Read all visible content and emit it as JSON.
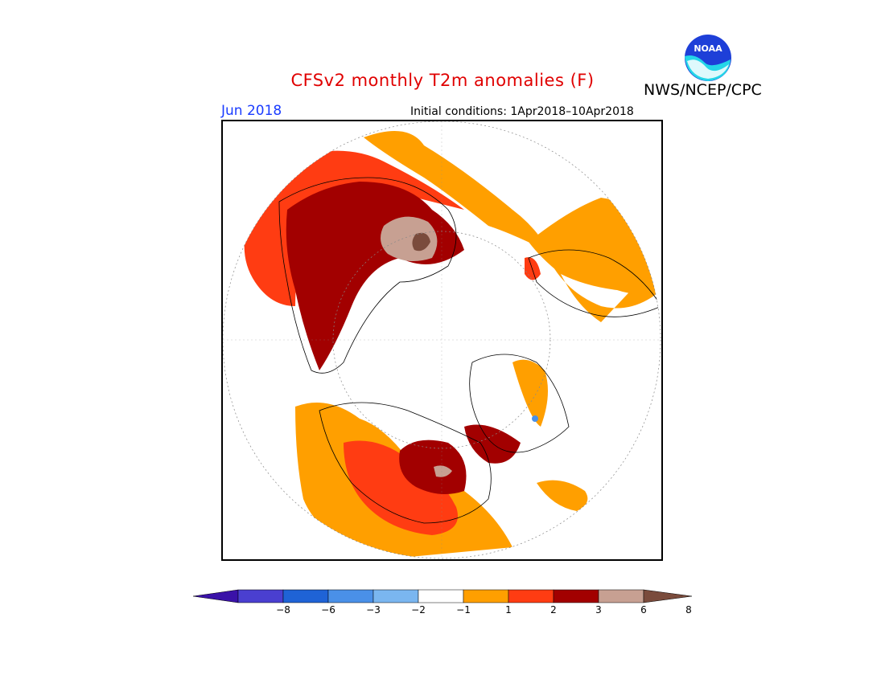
{
  "title": "CFSv2 monthly T2m anomalies (F)",
  "agency": "NWS/NCEP/CPC",
  "month": "Jun 2018",
  "initial_conditions": "Initial conditions: 1Apr2018–10Apr2018",
  "logo": {
    "text": "NOAA",
    "icon": "noaa-logo"
  },
  "colorbar": {
    "ticks": [
      "−8",
      "−6",
      "−3",
      "−2",
      "−1",
      "1",
      "2",
      "3",
      "6",
      "8"
    ],
    "colors": [
      "#3a12a8",
      "#4a3fd0",
      "#1f63d6",
      "#4a90e8",
      "#7ab6f0",
      "#ffffff",
      "#ff9f00",
      "#ff3c12",
      "#a20000",
      "#c7a092",
      "#7a4b3c"
    ]
  },
  "colors": {
    "t1_2": "#ff9f00",
    "t2_3": "#ff3c12",
    "t3_6": "#a20000",
    "t6_8": "#c7a092",
    "t8p": "#7a4b3c",
    "cool": "#4a90e8"
  }
}
